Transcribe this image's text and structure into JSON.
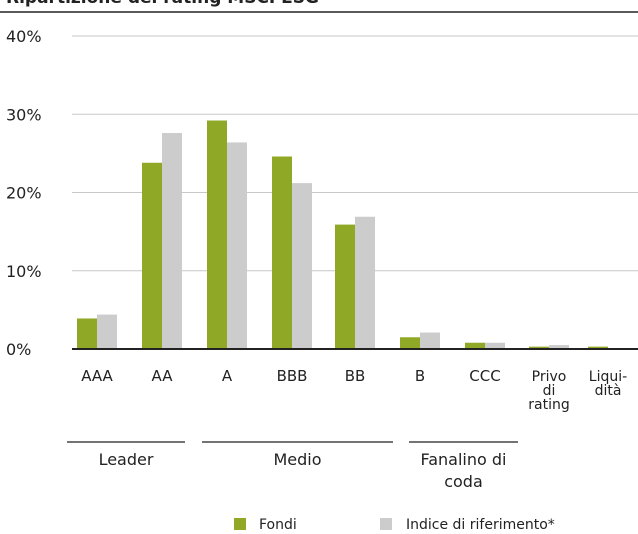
{
  "chart_data": {
    "type": "bar",
    "title": "Ripartizione del rating MSCI ESG",
    "xlabel": "",
    "ylabel": "",
    "ylim": [
      0,
      40
    ],
    "yticks": [
      "0%",
      "10%",
      "20%",
      "30%",
      "40%"
    ],
    "grid": true,
    "legend_position": "bottom",
    "categories": [
      [
        "AAA"
      ],
      [
        "AA"
      ],
      [
        "A"
      ],
      [
        "BBB"
      ],
      [
        "BB"
      ],
      [
        "B"
      ],
      [
        "CCC"
      ],
      [
        "Privo",
        "di",
        "rating"
      ],
      [
        "Liqui-",
        "dità"
      ]
    ],
    "series": [
      {
        "name": "Fondi",
        "color": "#8fa826",
        "values": [
          3.9,
          23.8,
          29.2,
          24.6,
          15.9,
          1.5,
          0.8,
          0.3,
          0.3
        ]
      },
      {
        "name": "Indice di riferimento*",
        "color": "#cccccc",
        "values": [
          4.4,
          27.6,
          26.4,
          21.2,
          16.9,
          2.1,
          0.8,
          0.5,
          0
        ]
      }
    ],
    "groups": [
      {
        "label": [
          "Leader"
        ],
        "from": 0,
        "to": 1
      },
      {
        "label": [
          "Medio"
        ],
        "from": 2,
        "to": 4
      },
      {
        "label": [
          "Fanalino di",
          "coda"
        ],
        "from": 5,
        "to": 6
      }
    ]
  }
}
